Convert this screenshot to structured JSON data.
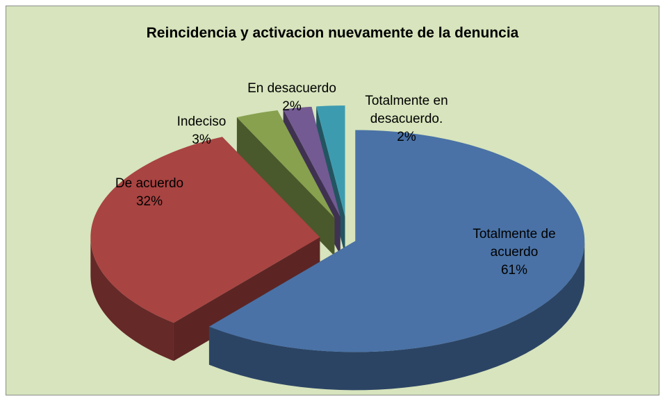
{
  "chart_data": {
    "type": "pie3d",
    "title": "Reincidencia y activacion nuevamente de la denuncia",
    "categories": [
      "Totalmente de acuerdo",
      "De acuerdo",
      "Indeciso",
      "En desacuerdo",
      "Totalmente en desacuerdo."
    ],
    "values": [
      61,
      32,
      3,
      2,
      2
    ],
    "value_labels": [
      "61%",
      "32%",
      "3%",
      "2%",
      "2%"
    ],
    "colors": [
      "#4a72a6",
      "#a84442",
      "#87a14f",
      "#735a92",
      "#3d9bb0"
    ]
  }
}
